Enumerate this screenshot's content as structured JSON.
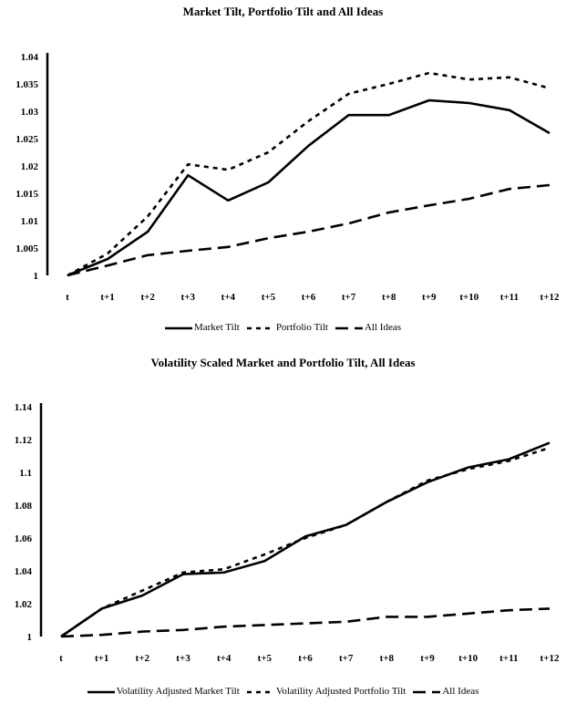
{
  "chart_data": [
    {
      "type": "line",
      "title": "Market Tilt, Portfolio Tilt and All Ideas",
      "categories": [
        "t",
        "t+1",
        "t+2",
        "t+3",
        "t+4",
        "t+5",
        "t+6",
        "t+7",
        "t+8",
        "t+9",
        "t+10",
        "t+11",
        "t+12"
      ],
      "ylim": [
        1,
        1.04
      ],
      "yticks": [
        "1",
        "1.005",
        "1.01",
        "1.015",
        "1.02",
        "1.025",
        "1.03",
        "1.035",
        "1.04"
      ],
      "ytick_values": [
        1,
        1.005,
        1.01,
        1.015,
        1.02,
        1.025,
        1.03,
        1.035,
        1.04
      ],
      "grid": false,
      "legend": "bottom",
      "series": [
        {
          "name": "Market Tilt",
          "style": "solid",
          "values": [
            1.0,
            1.003,
            1.008,
            1.0183,
            1.0137,
            1.017,
            1.0237,
            1.0293,
            1.0293,
            1.032,
            1.0315,
            1.0302,
            1.026
          ]
        },
        {
          "name": "Portfolio Tilt",
          "style": "dotted",
          "values": [
            1.0,
            1.004,
            1.0108,
            1.0203,
            1.0193,
            1.0225,
            1.0282,
            1.0332,
            1.035,
            1.037,
            1.0358,
            1.0362,
            1.0342
          ]
        },
        {
          "name": "All Ideas",
          "style": "dashed",
          "values": [
            1.0,
            1.0018,
            1.0037,
            1.0045,
            1.0052,
            1.0068,
            1.008,
            1.0095,
            1.0115,
            1.0128,
            1.014,
            1.0158,
            1.0165
          ]
        }
      ]
    },
    {
      "type": "line",
      "title": "Volatility Scaled Market and Portfolio Tilt, All Ideas",
      "categories": [
        "t",
        "t+1",
        "t+2",
        "t+3",
        "t+4",
        "t+5",
        "t+6",
        "t+7",
        "t+8",
        "t+9",
        "t+10",
        "t+11",
        "t+12"
      ],
      "ylim": [
        1,
        1.14
      ],
      "yticks": [
        "1",
        "1.02",
        "1.04",
        "1.06",
        "1.08",
        "1.1",
        "1.12",
        "1.14"
      ],
      "ytick_values": [
        1,
        1.02,
        1.04,
        1.06,
        1.08,
        1.1,
        1.12,
        1.14
      ],
      "grid": false,
      "legend": "bottom",
      "series": [
        {
          "name": "Volatility Adjusted Market Tilt",
          "style": "solid",
          "values": [
            1.0,
            1.017,
            1.025,
            1.038,
            1.039,
            1.046,
            1.061,
            1.068,
            1.082,
            1.094,
            1.103,
            1.108,
            1.118
          ]
        },
        {
          "name": "Volatility Adjusted Portfolio Tilt",
          "style": "dotted",
          "values": [
            1.0,
            1.017,
            1.028,
            1.039,
            1.041,
            1.05,
            1.06,
            1.068,
            1.082,
            1.095,
            1.102,
            1.107,
            1.115
          ]
        },
        {
          "name": "All Ideas",
          "style": "dashed",
          "values": [
            1.0,
            1.001,
            1.003,
            1.004,
            1.006,
            1.007,
            1.008,
            1.009,
            1.012,
            1.012,
            1.014,
            1.016,
            1.017
          ]
        }
      ]
    }
  ]
}
